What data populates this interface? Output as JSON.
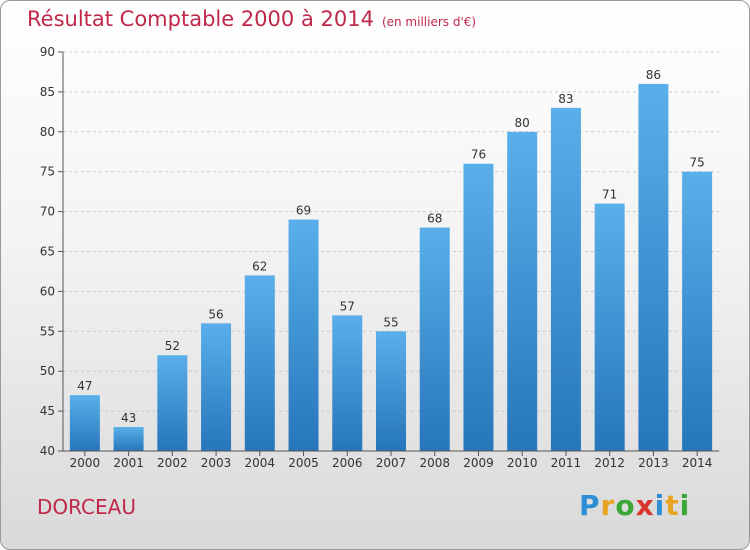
{
  "title": "Résultat Comptable 2000 à 2014",
  "unit": "(en milliers d'€)",
  "commune": "DORCEAU",
  "logo": {
    "letters": [
      "P",
      "r",
      "o",
      "x",
      "i",
      "t",
      "i"
    ],
    "colors": [
      "#2e8fd6",
      "#e8a321",
      "#3aa836",
      "#d9342b",
      "#2e8fd6",
      "#e8a321",
      "#3aa836"
    ]
  },
  "chart_data": {
    "type": "bar",
    "categories": [
      "2000",
      "2001",
      "2002",
      "2003",
      "2004",
      "2005",
      "2006",
      "2007",
      "2008",
      "2009",
      "2010",
      "2011",
      "2012",
      "2013",
      "2014"
    ],
    "values": [
      47,
      43,
      52,
      56,
      62,
      69,
      57,
      55,
      68,
      76,
      80,
      83,
      71,
      86,
      75
    ],
    "ylim": [
      40,
      90
    ],
    "yticks": [
      40,
      45,
      50,
      55,
      60,
      65,
      70,
      75,
      80,
      85,
      90
    ],
    "grid": true,
    "bar_color": "#3a96d8"
  }
}
